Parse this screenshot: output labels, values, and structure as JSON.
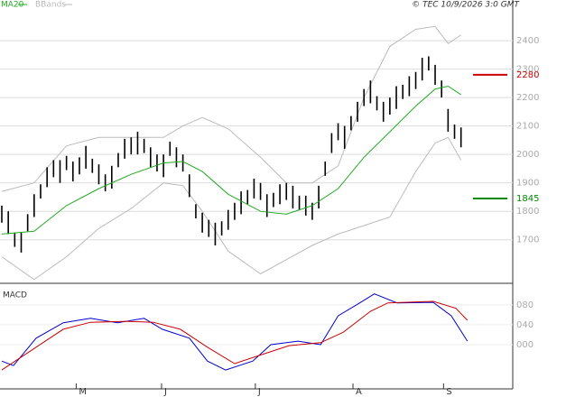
{
  "chart_data": [
    {
      "type": "hilo",
      "credit": "© TEC 10/9/2026 3:0 GMT",
      "xlim": [
        0,
        79
      ],
      "ylim": [
        1550,
        2505
      ],
      "yticks": [
        1700,
        1800,
        1900,
        2000,
        2100,
        2200,
        2300,
        2400
      ],
      "grid": true,
      "bars": {
        "color": "#000000",
        "high": [
          1820,
          1800,
          1725,
          1725,
          1790,
          1860,
          1895,
          1955,
          1980,
          1980,
          1995,
          1975,
          1990,
          2030,
          1985,
          1965,
          1930,
          1960,
          2005,
          2055,
          2060,
          2080,
          2055,
          2025,
          2000,
          2000,
          2045,
          2025,
          2000,
          1930,
          1825,
          1795,
          1770,
          1760,
          1765,
          1805,
          1830,
          1870,
          1875,
          1915,
          1900,
          1860,
          1865,
          1895,
          1900,
          1890,
          1855,
          1855,
          1830,
          1890,
          1975,
          2075,
          2110,
          2100,
          2135,
          2185,
          2230,
          2260,
          2205,
          2185,
          2200,
          2240,
          2245,
          2275,
          2290,
          2340,
          2345,
          2315,
          2260,
          2160,
          2105,
          2095
        ],
        "low": [
          1760,
          1720,
          1675,
          1655,
          1730,
          1780,
          1845,
          1885,
          1920,
          1900,
          1945,
          1905,
          1930,
          1950,
          1935,
          1895,
          1870,
          1880,
          1955,
          1985,
          2000,
          2000,
          2005,
          1955,
          1940,
          1920,
          1995,
          1955,
          1940,
          1850,
          1775,
          1725,
          1710,
          1680,
          1715,
          1735,
          1770,
          1790,
          1825,
          1845,
          1840,
          1780,
          1815,
          1825,
          1840,
          1810,
          1805,
          1785,
          1770,
          1810,
          1925,
          2005,
          2050,
          2020,
          2085,
          2115,
          2170,
          2180,
          2155,
          2115,
          2140,
          2160,
          2195,
          2205,
          2230,
          2260,
          2295,
          2245,
          2200,
          2080,
          2055,
          2025
        ]
      },
      "series": [
        {
          "name": "MA20",
          "color": "#22aa22",
          "x": [
            0,
            5,
            10,
            15,
            20,
            25,
            28,
            31,
            35,
            40,
            44,
            48,
            52,
            56,
            60,
            64,
            67,
            69,
            71
          ],
          "values": [
            1720,
            1730,
            1820,
            1880,
            1930,
            1970,
            1975,
            1940,
            1860,
            1800,
            1790,
            1820,
            1880,
            1990,
            2080,
            2170,
            2230,
            2240,
            2210
          ]
        }
      ],
      "bands": {
        "name": "BBands",
        "color": "#bbbbbb",
        "x": [
          0,
          5,
          10,
          15,
          20,
          25,
          28,
          31,
          35,
          40,
          44,
          48,
          52,
          56,
          60,
          64,
          67,
          69,
          71
        ],
        "upper": [
          1870,
          1900,
          2030,
          2060,
          2060,
          2060,
          2100,
          2130,
          2090,
          1990,
          1900,
          1900,
          1960,
          2200,
          2380,
          2440,
          2450,
          2390,
          2420
        ],
        "lower": [
          1640,
          1560,
          1640,
          1740,
          1810,
          1900,
          1890,
          1800,
          1660,
          1580,
          1630,
          1680,
          1720,
          1750,
          1780,
          1940,
          2040,
          2060,
          1980
        ]
      },
      "levels": [
        {
          "value": 2280,
          "color": "#cc0000"
        },
        {
          "value": 1845,
          "color": "#008800"
        }
      ]
    },
    {
      "type": "line",
      "title": "MACD",
      "xlim": [
        0,
        79
      ],
      "ylim": [
        -87,
        116
      ],
      "yticks": [
        {
          "value": 0,
          "label": "000"
        },
        {
          "value": 40,
          "label": "040"
        },
        {
          "value": 80,
          "label": "080"
        }
      ],
      "xticks": [
        {
          "value": 11.5,
          "label": "M"
        },
        {
          "value": 24.7,
          "label": "J"
        },
        {
          "value": 39.2,
          "label": "J"
        },
        {
          "value": 54.3,
          "label": "A"
        },
        {
          "value": 68.3,
          "label": "S"
        }
      ],
      "series": [
        {
          "color": "#0000cc",
          "x": [
            0,
            1.8,
            5.3,
            9.5,
            13.7,
            17.9,
            22,
            24.8,
            29,
            31.8,
            34.6,
            38.8,
            41.6,
            45.8,
            49.3,
            52,
            55.5,
            57.6,
            61.1,
            66.7,
            69.5,
            72
          ],
          "values": [
            -33,
            -42,
            13,
            44,
            53,
            44,
            53,
            31,
            13,
            -33,
            -51,
            -33,
            0,
            7,
            0,
            58,
            85,
            102,
            84,
            85,
            58,
            7
          ]
        },
        {
          "color": "#cc0000",
          "x": [
            0,
            5.3,
            9.5,
            13.7,
            19.3,
            23.4,
            27.6,
            31.8,
            36,
            40.2,
            44.4,
            49.3,
            52.8,
            57,
            59.7,
            66.7,
            70.2,
            72
          ],
          "values": [
            -51,
            -5,
            31,
            45,
            47,
            45,
            31,
            -5,
            -38,
            -20,
            -2,
            4,
            25,
            67,
            84,
            87,
            73,
            49
          ]
        }
      ]
    }
  ]
}
